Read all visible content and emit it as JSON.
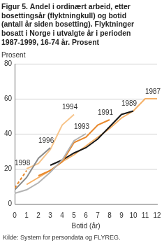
{
  "chart_data": {
    "type": "line",
    "title": [
      "Figur 5. Andel i ordinært arbeid, etter",
      "bosettingsår (flyktningkull) og botid",
      "(antall år siden bosetting). Flyktninger",
      "bosatt i Norge i utvalgte år i perioden",
      "1987-1999, 16-74 år. Prosent"
    ],
    "y_label": "Prosent",
    "x_label": "Botid (år)",
    "source": "Kilde: System for persondata og FLYREG.",
    "x": [
      0,
      1,
      2,
      3,
      4,
      5,
      6,
      7,
      8,
      9,
      10,
      11,
      12
    ],
    "series": [
      {
        "name": "1998",
        "color": "#e8872a",
        "line_style": "dashed",
        "values": [
          9,
          19,
          null,
          null,
          null,
          null,
          null,
          null,
          null,
          null,
          null,
          null,
          null
        ]
      },
      {
        "name": "1996",
        "color": "#8c8c8c",
        "line_style": "solid",
        "values": [
          8,
          15,
          26,
          32,
          null,
          null,
          null,
          null,
          null,
          null,
          null,
          null,
          null
        ]
      },
      {
        "name": "1994",
        "color": "#f7c48a",
        "line_style": "solid",
        "values": [
          null,
          20,
          23,
          31,
          45,
          51,
          null,
          null,
          null,
          null,
          null,
          null,
          null
        ]
      },
      {
        "name": "1993",
        "color": "#b3b3b3",
        "line_style": "solid",
        "values": [
          6,
          8,
          12,
          18,
          25,
          36,
          40,
          null,
          null,
          null,
          null,
          null,
          null
        ]
      },
      {
        "name": "1991",
        "color": "#e8872a",
        "line_style": "solid",
        "values": [
          null,
          null,
          16,
          19,
          24,
          35,
          38,
          45,
          48,
          null,
          null,
          null,
          null
        ]
      },
      {
        "name": "1989",
        "color": "#1a1a1a",
        "line_style": "solid",
        "values": [
          null,
          null,
          null,
          22,
          25,
          29,
          32,
          37,
          44,
          51,
          53,
          null,
          null
        ]
      },
      {
        "name": "1987",
        "color": "#f5b066",
        "line_style": "solid",
        "values": [
          null,
          11,
          15,
          19,
          24,
          28,
          33,
          38,
          43,
          49,
          53,
          60,
          60
        ]
      }
    ],
    "xlim": [
      0,
      12
    ],
    "xticks": [
      0,
      1,
      2,
      3,
      4,
      5,
      6,
      7,
      8,
      9,
      10,
      11,
      12
    ],
    "ylim": [
      0,
      80
    ],
    "yticks": [
      0,
      20,
      40,
      60,
      80
    ],
    "grid": true
  }
}
